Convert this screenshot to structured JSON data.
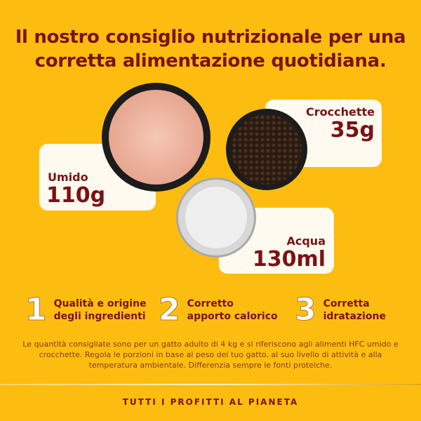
{
  "title": [
    "Il nostro consiglio nutrizionale per una",
    "corretta alimentazione quotidiana."
  ],
  "cards": {
    "umido": {
      "label": "Umido",
      "value": "110g"
    },
    "crocchette": {
      "label": "Crocchette",
      "value": "35g"
    },
    "acqua": {
      "label": "Acqua",
      "value": "130ml"
    }
  },
  "features": [
    {
      "number": "1",
      "line1": "Qualità e origine",
      "line2": "degli ingredienti"
    },
    {
      "number": "2",
      "line1": "Corretto",
      "line2": "apporto calorico"
    },
    {
      "number": "3",
      "line1": "Corretta",
      "line2": "idratazione"
    }
  ],
  "note": "Le quantità consigliate sono per un gatto adulto di 4 kg e si riferiscono agli alimenti HFC umido e crocchette. Regola le porzioni in base al peso del tuo gatto, al suo livello di attività e alla temperatura ambientale. Differenzia sempre le fonti proteiche.",
  "footer": "TUTTI I PROFITTI AL PIANETA",
  "colors": {
    "background": "#fdbd10",
    "text": "#7a1212",
    "card": "#fffaf0"
  }
}
